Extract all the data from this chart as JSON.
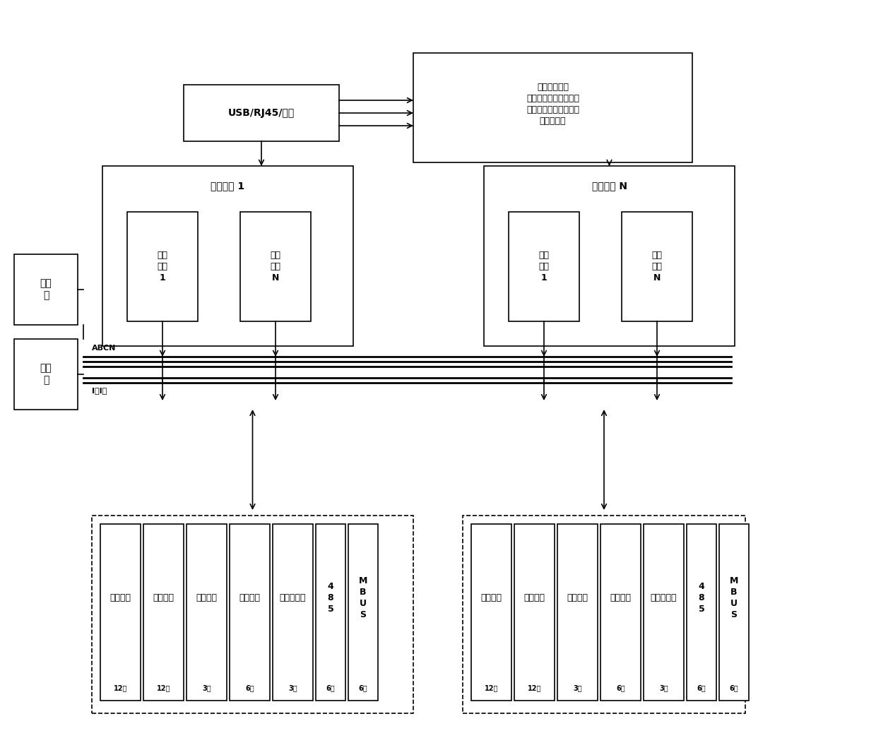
{
  "bg_color": "#ffffff",
  "lc": "#000000",
  "fig_w": 12.4,
  "fig_h": 10.45,
  "usb_text": "USB/RJ45/蓝牙",
  "func_text": "功能测试软件\n测试动作发起、输入输\n出信号匹配与检测、虚\n拟表响应等",
  "t1_text": "待测终端 1",
  "tN_text": "待测终端 N",
  "e_text_1": "实体\n模块\n1",
  "e_text_N": "实体\n模块\nN",
  "src_text": "标准\n源",
  "meter_text": "标准\n表",
  "abcn_text": "ABCN",
  "i_text": "I＋I－",
  "cols_main": [
    "脉冲发生",
    "遥信发生",
    "脉冲检测",
    "遥控检测",
    "模拟量发生",
    "4\n8\n5",
    "M\nB\nU\nS"
  ],
  "cols_sub": [
    "12组",
    "12组",
    "3组",
    "6组",
    "3组",
    "6组",
    "6组"
  ]
}
